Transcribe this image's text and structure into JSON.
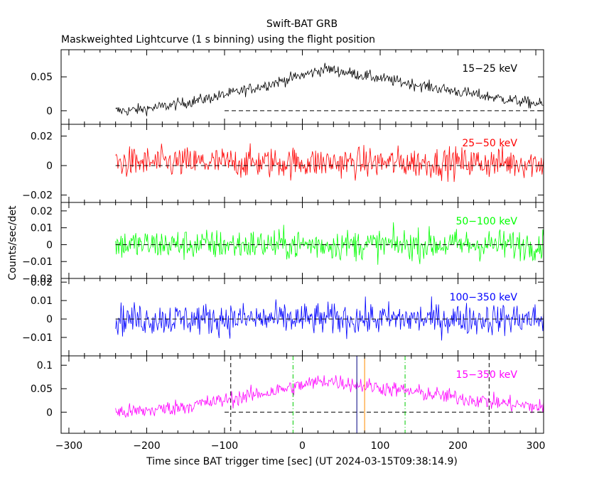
{
  "title": "Swift-BAT GRB",
  "subtitle": "Maskweighted Lightcurve (1 s binning) using the flight position",
  "chart_data": {
    "type": "line",
    "title": "Swift-BAT GRB",
    "subtitle": "Maskweighted Lightcurve (1 s binning) using the flight position",
    "xlabel": "Time since BAT trigger time [sec] (UT 2024-03-15T09:38:14.9)",
    "ylabel": "Counts/sec/det",
    "xlim": [
      -310,
      310
    ],
    "x_ticks": [
      -300,
      -200,
      -100,
      0,
      100,
      200,
      300
    ],
    "x_tick_labels": [
      "−300",
      "−200",
      "−100",
      "0",
      "100",
      "200",
      "300"
    ],
    "data_start": -240,
    "data_end": 310,
    "bin_seconds": 1,
    "markers": [
      {
        "x": -92,
        "color": "#000000",
        "style": "dashed"
      },
      {
        "x": -12,
        "color": "#00cc00",
        "style": "dashdot"
      },
      {
        "x": 70,
        "color": "#000080",
        "style": "solid"
      },
      {
        "x": 80,
        "color": "#ff8c00",
        "style": "solid"
      },
      {
        "x": 132,
        "color": "#00cc00",
        "style": "dashdot"
      },
      {
        "x": 240,
        "color": "#000000",
        "style": "dashed"
      }
    ],
    "panels": [
      {
        "name": "15−25 keV",
        "color": "#000000",
        "ylim": [
          -0.02,
          0.09
        ],
        "yticks": [
          0,
          0.05
        ],
        "ytick_labels": [
          "0",
          "0.05"
        ],
        "zero_line_from": -100,
        "profile": {
          "base": 0.0,
          "peak": 0.062,
          "peak_time": 30,
          "rise_start": -230,
          "decay_end": 310,
          "noise": 0.006
        },
        "markers": false
      },
      {
        "name": "25−50 keV",
        "color": "#ff0000",
        "ylim": [
          -0.025,
          0.028
        ],
        "yticks": [
          -0.02,
          0,
          0.02
        ],
        "ytick_labels": [
          "−0.02",
          "0",
          "0.02"
        ],
        "zero_line_from": -240,
        "profile": {
          "base": 0.002,
          "peak": 0.002,
          "peak_time": 30,
          "rise_start": -230,
          "decay_end": 310,
          "noise": 0.0075
        },
        "markers": false
      },
      {
        "name": "50−100 keV",
        "color": "#00ff00",
        "ylim": [
          -0.02,
          0.025
        ],
        "yticks": [
          -0.02,
          -0.01,
          0,
          0.01,
          0.02
        ],
        "ytick_labels": [
          "−0.02",
          "−0.01",
          "0",
          "0.01",
          "0.02"
        ],
        "zero_line_from": -240,
        "profile": {
          "base": 0.0,
          "peak": 0.0,
          "peak_time": 30,
          "rise_start": -230,
          "decay_end": 310,
          "noise": 0.0065
        },
        "markers": false
      },
      {
        "name": "100−350 keV",
        "color": "#0000ff",
        "ylim": [
          -0.02,
          0.022
        ],
        "yticks": [
          -0.01,
          0,
          0.01,
          0.02
        ],
        "ytick_labels": [
          "−0.01",
          "0",
          "0.01",
          "0.02"
        ],
        "zero_line_from": -240,
        "profile": {
          "base": 0.0,
          "peak": 0.0,
          "peak_time": 30,
          "rise_start": -230,
          "decay_end": 310,
          "noise": 0.0062
        },
        "markers": false
      },
      {
        "name": "15−350 keV",
        "color": "#ff00ff",
        "ylim": [
          -0.045,
          0.12
        ],
        "yticks": [
          0,
          0.05,
          0.1
        ],
        "ytick_labels": [
          "0",
          "0.05",
          "0.1"
        ],
        "zero_line_from": -100,
        "profile": {
          "base": 0.0,
          "peak": 0.068,
          "peak_time": 30,
          "rise_start": -230,
          "decay_end": 310,
          "noise": 0.012
        },
        "markers": true
      }
    ]
  }
}
